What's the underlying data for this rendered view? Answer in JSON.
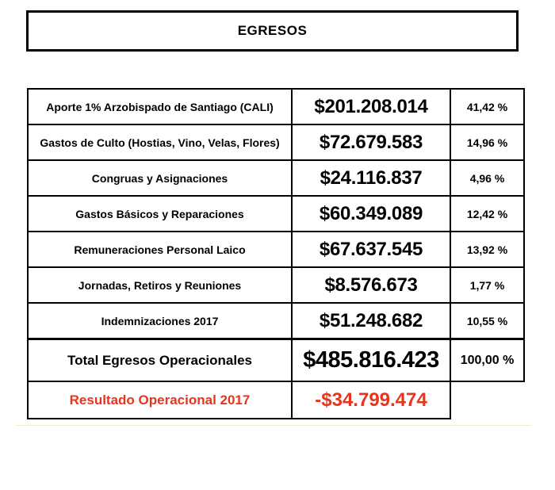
{
  "title": "EGRESOS",
  "rows": [
    {
      "label": "Aporte 1% Arzobispado de Santiago (CALI)",
      "amount": "$201.208.014",
      "percent": "41,42  %"
    },
    {
      "label": "Gastos de Culto (Hostias, Vino, Velas, Flores)",
      "amount": "$72.679.583",
      "percent": "14,96  %"
    },
    {
      "label": "Congruas y Asignaciones",
      "amount": "$24.116.837",
      "percent": "4,96  %"
    },
    {
      "label": "Gastos Básicos y Reparaciones",
      "amount": "$60.349.089",
      "percent": "12,42  %"
    },
    {
      "label": "Remuneraciones Personal Laico",
      "amount": "$67.637.545",
      "percent": "13,92  %"
    },
    {
      "label": "Jornadas, Retiros y Reuniones",
      "amount": "$8.576.673",
      "percent": "1,77  %"
    },
    {
      "label": "Indemnizaciones 2017",
      "amount": "$51.248.682",
      "percent": "10,55  %"
    }
  ],
  "total": {
    "label": "Total Egresos Operacionales",
    "amount": "$485.816.423",
    "percent": "100,00  %"
  },
  "result": {
    "label": "Resultado Operacional 2017",
    "amount": "-$34.799.474"
  },
  "colors": {
    "result_text": "#e8341c",
    "border": "#000000"
  }
}
